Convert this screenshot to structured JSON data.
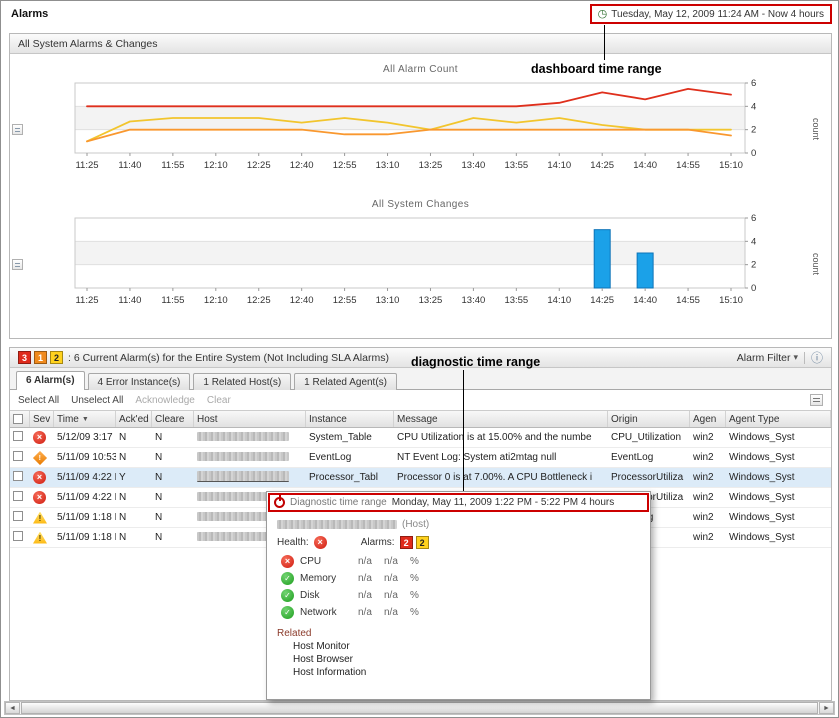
{
  "window": {
    "title": "Alarms",
    "time_range": "Tuesday, May 12, 2009 11:24 AM - Now 4 hours"
  },
  "annotations": {
    "dashboard_label": "dashboard time range",
    "diagnostic_label": "diagnostic time range"
  },
  "alarms_panel": {
    "title": "All System Alarms & Changes"
  },
  "chart_data": [
    {
      "type": "line",
      "title": "All Alarm Count",
      "x": [
        "11:25",
        "11:40",
        "11:55",
        "12:10",
        "12:25",
        "12:40",
        "12:55",
        "13:10",
        "13:25",
        "13:40",
        "13:55",
        "14:10",
        "14:25",
        "14:40",
        "14:55",
        "15:10"
      ],
      "series": [
        {
          "name": "red",
          "color": "#df2f1c",
          "values": [
            4,
            4,
            4,
            4,
            4,
            4,
            4,
            4,
            4,
            4,
            4,
            4.3,
            5.2,
            4.6,
            5.5,
            5
          ]
        },
        {
          "name": "yellow",
          "color": "#f2c52d",
          "values": [
            1,
            2.7,
            3,
            3,
            3,
            2.6,
            3,
            2.6,
            2,
            3,
            2.6,
            3,
            2.4,
            2,
            2,
            2
          ]
        },
        {
          "name": "orange",
          "color": "#f9982f",
          "values": [
            1,
            2,
            2,
            2,
            2,
            2,
            1.6,
            1.6,
            2,
            2,
            2,
            2,
            2,
            2,
            2,
            1.5
          ]
        }
      ],
      "ylabel": "count",
      "ylim": [
        0,
        6
      ],
      "yticks": [
        0,
        2,
        4,
        6
      ],
      "legend": "none"
    },
    {
      "type": "bar",
      "title": "All System Changes",
      "x": [
        "11:25",
        "11:40",
        "11:55",
        "12:10",
        "12:25",
        "12:40",
        "12:55",
        "13:10",
        "13:25",
        "13:40",
        "13:55",
        "14:10",
        "14:25",
        "14:40",
        "14:55",
        "15:10"
      ],
      "values": [
        0,
        0,
        0,
        0,
        0,
        0,
        0,
        0,
        0,
        0,
        0,
        0,
        5,
        3,
        0,
        0
      ],
      "color": "#1ba1e8",
      "ylabel": "count",
      "ylim": [
        0,
        6
      ],
      "yticks": [
        0,
        2,
        4,
        6
      ],
      "legend": "none"
    }
  ],
  "summary": {
    "counts": [
      {
        "severity": "fatal",
        "value": "3"
      },
      {
        "severity": "critical",
        "value": "1"
      },
      {
        "severity": "warning",
        "value": "2"
      }
    ],
    "text": ": 6 Current Alarm(s) for the Entire System (Not Including SLA Alarms)",
    "filter": "Alarm Filter"
  },
  "tabs": [
    {
      "label": "6 Alarm(s)",
      "active": true
    },
    {
      "label": "4 Error Instance(s)",
      "active": false
    },
    {
      "label": "1 Related Host(s)",
      "active": false
    },
    {
      "label": "1 Related Agent(s)",
      "active": false
    }
  ],
  "toolbar": {
    "select_all": "Select All",
    "unselect_all": "Unselect All",
    "acknowledge": "Acknowledge",
    "clear": "Clear"
  },
  "table": {
    "columns": [
      "",
      "Sev",
      "Time",
      "Ack'ed",
      "Cleare",
      "Host",
      "Instance",
      "Message",
      "Origin",
      "Agen",
      "Agent Type"
    ],
    "sort_column": "Time",
    "rows": [
      {
        "severity": "fatal",
        "time": "5/12/09 3:17 P",
        "acked": "N",
        "cleared": "N",
        "instance": "System_Table",
        "message": "CPU Utilization is at 15.00% and the numbe",
        "origin": "CPU_Utilization",
        "agent": "win2",
        "agent_type": "Windows_Syst",
        "highlighted": false
      },
      {
        "severity": "critical",
        "time": "5/11/09 10:53",
        "acked": "N",
        "cleared": "N",
        "instance": "EventLog",
        "message": "NT Event Log: System ati2mtag null",
        "origin": "EventLog",
        "agent": "win2",
        "agent_type": "Windows_Syst",
        "highlighted": false
      },
      {
        "severity": "fatal",
        "time": "5/11/09 4:22 P",
        "acked": "Y",
        "cleared": "N",
        "instance": "Processor_Tabl",
        "message": "Processor 0 is at 7.00%. A CPU Bottleneck i",
        "origin": "ProcessorUtiliza",
        "agent": "win2",
        "agent_type": "Windows_Syst",
        "highlighted": true
      },
      {
        "severity": "fatal",
        "time": "5/11/09 4:22 P",
        "acked": "N",
        "cleared": "N",
        "instance": "",
        "message": "",
        "origin": "ProcessorUtiliza",
        "agent": "win2",
        "agent_type": "Windows_Syst",
        "highlighted": false
      },
      {
        "severity": "warning",
        "time": "5/11/09 1:18 P",
        "acked": "N",
        "cleared": "N",
        "instance": "",
        "message": "",
        "origin": "EventLog",
        "agent": "win2",
        "agent_type": "Windows_Syst",
        "highlighted": false
      },
      {
        "severity": "warning",
        "time": "5/11/09 1:18 P",
        "acked": "N",
        "cleared": "N",
        "instance": "",
        "message": "",
        "origin": "",
        "agent": "win2",
        "agent_type": "Windows_Syst",
        "highlighted": false
      }
    ]
  },
  "popup": {
    "header_label": "Diagnostic time range",
    "header_range": "Monday, May 11, 2009  1:22 PM - 5:22 PM  4 hours",
    "host_suffix": "(Host)",
    "health_label": "Health:",
    "alarms_label": "Alarms:",
    "alarm_counts": [
      {
        "severity": "fatal",
        "value": "2"
      },
      {
        "severity": "warning",
        "value": "2"
      }
    ],
    "metrics": [
      {
        "name": "CPU",
        "status": "fatal",
        "v1": "n/a",
        "v2": "n/a",
        "unit": "%"
      },
      {
        "name": "Memory",
        "status": "ok",
        "v1": "n/a",
        "v2": "n/a",
        "unit": "%"
      },
      {
        "name": "Disk",
        "status": "ok",
        "v1": "n/a",
        "v2": "n/a",
        "unit": "%"
      },
      {
        "name": "Network",
        "status": "ok",
        "v1": "n/a",
        "v2": "n/a",
        "unit": "%"
      }
    ],
    "related_label": "Related",
    "related_links": [
      "Host Monitor",
      "Host Browser",
      "Host Information"
    ]
  },
  "icons": {
    "clock": "◷",
    "sort_desc": "▼",
    "caret_down": "▾",
    "info": "ⓘ",
    "scroll_left": "◄",
    "scroll_right": "►",
    "cross": "×",
    "check": "✓",
    "bang": "!"
  }
}
